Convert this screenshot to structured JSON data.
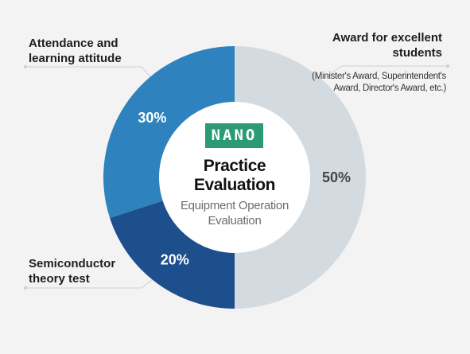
{
  "chart_data": {
    "type": "pie",
    "categories": [
      "Award for excellent students",
      "Attendance and learning attitude",
      "Semiconductor theory test"
    ],
    "values": [
      50,
      20,
      30
    ],
    "value_labels": [
      "50%",
      "20%",
      "30%"
    ],
    "colors": [
      "#d3dbe1",
      "#1d4f8c",
      "#2e82bd"
    ],
    "label_colors": [
      "#454545",
      "#ffffff",
      "#ffffff"
    ],
    "donut": true,
    "legend": "callout labels"
  },
  "labels": {
    "award": "Award for excellent students",
    "award_note": "(Minister's Award, Superintendent's Award, Director's Award, etc.)",
    "attendance": "Attendance and learning attitude",
    "semiconductor": "Semiconductor theory test"
  },
  "center": {
    "logo_text": "NANO",
    "title": "Practice Evaluation",
    "subtitle": "Equipment Operation Evaluation"
  },
  "colors": {
    "background": "#f3f3f3",
    "logo_bg": "#2a9b75",
    "leader_line": "#cfcfcf"
  }
}
